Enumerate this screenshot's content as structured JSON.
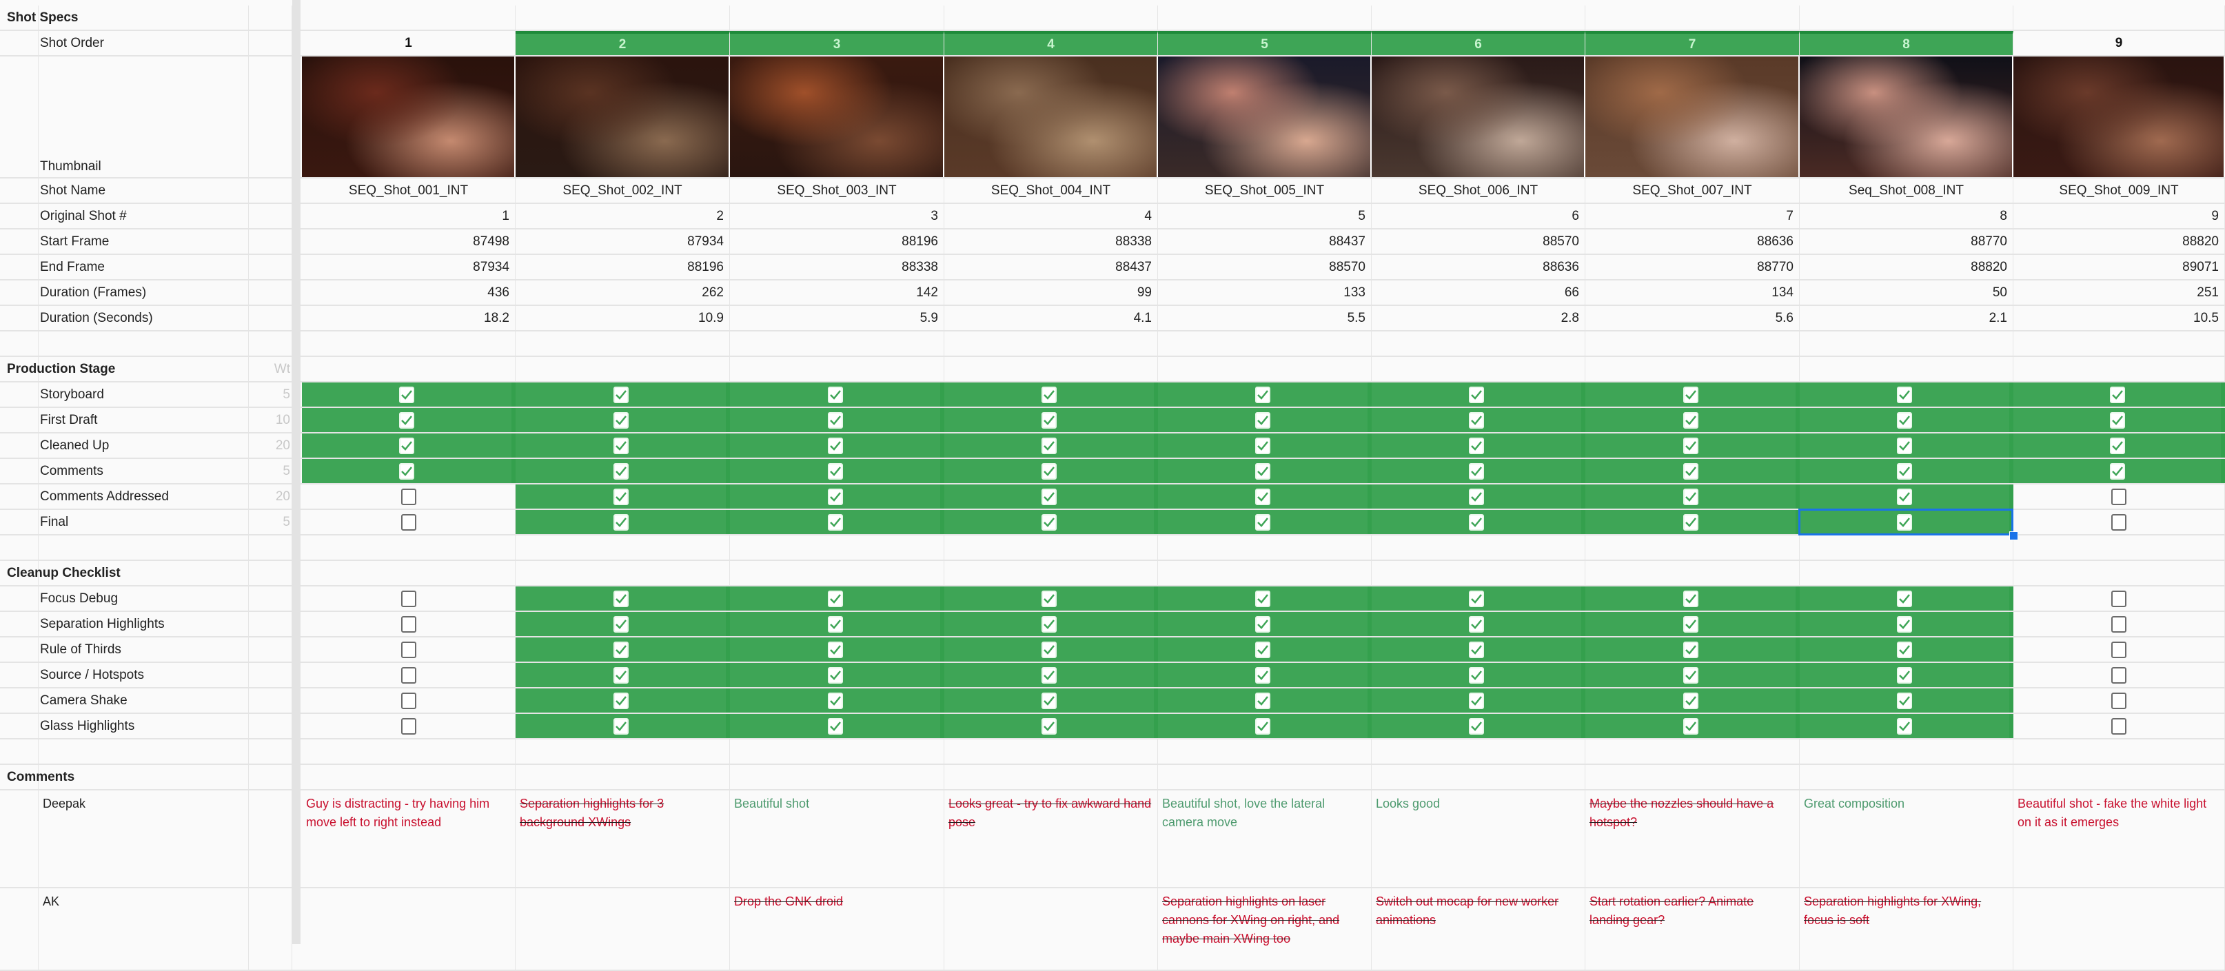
{
  "sections": {
    "shot_specs": "Shot Specs",
    "production_stage": "Production Stage",
    "weight_header": "Wt",
    "cleanup_checklist": "Cleanup Checklist",
    "comments": "Comments"
  },
  "colors": {
    "accent_green": "#3ea556",
    "selection": "#1a73e8",
    "comment_open": "#c8102e",
    "comment_positive": "#4d9a6e"
  },
  "spec_labels": {
    "shot_order": "Shot Order",
    "thumbnail": "Thumbnail",
    "shot_name": "Shot Name",
    "original": "Original Shot #",
    "start": "Start Frame",
    "end": "End Frame",
    "dur_frames": "Duration (Frames)",
    "dur_seconds": "Duration (Seconds)"
  },
  "shots": [
    {
      "order": "1",
      "name": "SEQ_Shot_001_INT",
      "original": "1",
      "start": "87498",
      "end": "87934",
      "frames": "436",
      "seconds": "18.2",
      "complete": false,
      "thumb": [
        "#2a120c",
        "#6b2a1c",
        "#c58a70",
        "#3a1810"
      ]
    },
    {
      "order": "2",
      "name": "SEQ_Shot_002_INT",
      "original": "2",
      "start": "87934",
      "end": "88196",
      "frames": "262",
      "seconds": "10.9",
      "complete": true,
      "thumb": [
        "#2b140e",
        "#5a3322",
        "#8a6a50",
        "#2a1a14"
      ]
    },
    {
      "order": "3",
      "name": "SEQ_Shot_003_INT",
      "original": "3",
      "start": "88196",
      "end": "88338",
      "frames": "142",
      "seconds": "5.9",
      "complete": true,
      "thumb": [
        "#3a1a10",
        "#a0502a",
        "#7a4a32",
        "#2a1610"
      ]
    },
    {
      "order": "4",
      "name": "SEQ_Shot_004_INT",
      "original": "4",
      "start": "88338",
      "end": "88437",
      "frames": "99",
      "seconds": "4.1",
      "complete": true,
      "thumb": [
        "#4a3020",
        "#8a6a50",
        "#b09070",
        "#5a3a28"
      ]
    },
    {
      "order": "5",
      "name": "SEQ_Shot_005_INT",
      "original": "5",
      "start": "88437",
      "end": "88570",
      "frames": "133",
      "seconds": "5.5",
      "complete": true,
      "thumb": [
        "#1a1a2a",
        "#c08070",
        "#d8a890",
        "#3a2a28"
      ]
    },
    {
      "order": "6",
      "name": "SEQ_Shot_006_INT",
      "original": "6",
      "start": "88570",
      "end": "88636",
      "frames": "66",
      "seconds": "2.8",
      "complete": true,
      "thumb": [
        "#2a1a18",
        "#7a5a4a",
        "#c0a898",
        "#4a3830"
      ]
    },
    {
      "order": "7",
      "name": "SEQ_Shot_007_INT",
      "original": "7",
      "start": "88636",
      "end": "88770",
      "frames": "134",
      "seconds": "5.6",
      "complete": true,
      "thumb": [
        "#5a3a28",
        "#a06a48",
        "#d0b0a0",
        "#6a4a38"
      ]
    },
    {
      "order": "8",
      "name": "Seq_Shot_008_INT",
      "original": "8",
      "start": "88770",
      "end": "88820",
      "frames": "50",
      "seconds": "2.1",
      "complete": true,
      "thumb": [
        "#101018",
        "#c89080",
        "#d8a898",
        "#4a2a24"
      ]
    },
    {
      "order": "9",
      "name": "SEQ_Shot_009_INT",
      "original": "9",
      "start": "88820",
      "end": "89071",
      "frames": "251",
      "seconds": "10.5",
      "complete": false,
      "thumb": [
        "#2a1410",
        "#6a3a2a",
        "#a06a50",
        "#3a1a14"
      ]
    }
  ],
  "production_stages": [
    {
      "label": "Storyboard",
      "weight": "5",
      "checked": [
        true,
        true,
        true,
        true,
        true,
        true,
        true,
        true,
        true
      ]
    },
    {
      "label": "First Draft",
      "weight": "10",
      "checked": [
        true,
        true,
        true,
        true,
        true,
        true,
        true,
        true,
        true
      ]
    },
    {
      "label": "Cleaned Up",
      "weight": "20",
      "checked": [
        true,
        true,
        true,
        true,
        true,
        true,
        true,
        true,
        true
      ]
    },
    {
      "label": "Comments",
      "weight": "5",
      "checked": [
        true,
        true,
        true,
        true,
        true,
        true,
        true,
        true,
        true
      ]
    },
    {
      "label": "Comments Addressed",
      "weight": "20",
      "checked": [
        false,
        true,
        true,
        true,
        true,
        true,
        true,
        true,
        false
      ]
    },
    {
      "label": "Final",
      "weight": "5",
      "checked": [
        false,
        true,
        true,
        true,
        true,
        true,
        true,
        true,
        false
      ]
    }
  ],
  "cleanup_items": [
    {
      "label": "Focus Debug",
      "checked": [
        false,
        true,
        true,
        true,
        true,
        true,
        true,
        true,
        false
      ]
    },
    {
      "label": "Separation Highlights",
      "checked": [
        false,
        true,
        true,
        true,
        true,
        true,
        true,
        true,
        false
      ]
    },
    {
      "label": "Rule of Thirds",
      "checked": [
        false,
        true,
        true,
        true,
        true,
        true,
        true,
        true,
        false
      ]
    },
    {
      "label": "Source / Hotspots",
      "checked": [
        false,
        true,
        true,
        true,
        true,
        true,
        true,
        true,
        false
      ]
    },
    {
      "label": "Camera Shake",
      "checked": [
        false,
        true,
        true,
        true,
        true,
        true,
        true,
        true,
        false
      ]
    },
    {
      "label": "Glass Highlights",
      "checked": [
        false,
        true,
        true,
        true,
        true,
        true,
        true,
        true,
        false
      ]
    }
  ],
  "reviewers": [
    {
      "name": "Deepak",
      "comments": [
        {
          "text": "Guy is distracting - try having him move left to right instead",
          "tone": "red",
          "resolved": false
        },
        {
          "text": "Separation highlights for 3 background XWings",
          "tone": "red",
          "resolved": true
        },
        {
          "text": "Beautiful shot",
          "tone": "grn",
          "resolved": false
        },
        {
          "text": "Looks great - try to fix awkward hand pose",
          "tone": "red",
          "resolved": true
        },
        {
          "text": "Beautiful shot, love the lateral camera move",
          "tone": "grn",
          "resolved": false
        },
        {
          "text": "Looks good",
          "tone": "grn",
          "resolved": false
        },
        {
          "text": "Maybe the nozzles should have a hotspot?",
          "tone": "red",
          "resolved": true
        },
        {
          "text": "Great composition",
          "tone": "grn",
          "resolved": false
        },
        {
          "text": "Beautiful shot - fake the white light on it as it emerges",
          "tone": "red",
          "resolved": false
        }
      ]
    },
    {
      "name": "AK",
      "comments": [
        {
          "text": "",
          "tone": "red",
          "resolved": false
        },
        {
          "text": "",
          "tone": "red",
          "resolved": false
        },
        {
          "text": "Drop the GNK droid",
          "tone": "red",
          "resolved": true
        },
        {
          "text": "",
          "tone": "red",
          "resolved": false
        },
        {
          "text": "Separation highlights on laser cannons for XWing on right, and maybe main XWing too",
          "tone": "red",
          "resolved": true
        },
        {
          "text": "Switch out mocap for new worker animations",
          "tone": "red",
          "resolved": true
        },
        {
          "text": "Start rotation earlier? Animate landing gear?",
          "tone": "red",
          "resolved": true
        },
        {
          "text": "Separation highlights for XWing, focus is soft",
          "tone": "red",
          "resolved": true
        },
        {
          "text": "",
          "tone": "red",
          "resolved": false
        }
      ]
    }
  ],
  "selected_cell": {
    "row": "Final",
    "shot": "8"
  }
}
